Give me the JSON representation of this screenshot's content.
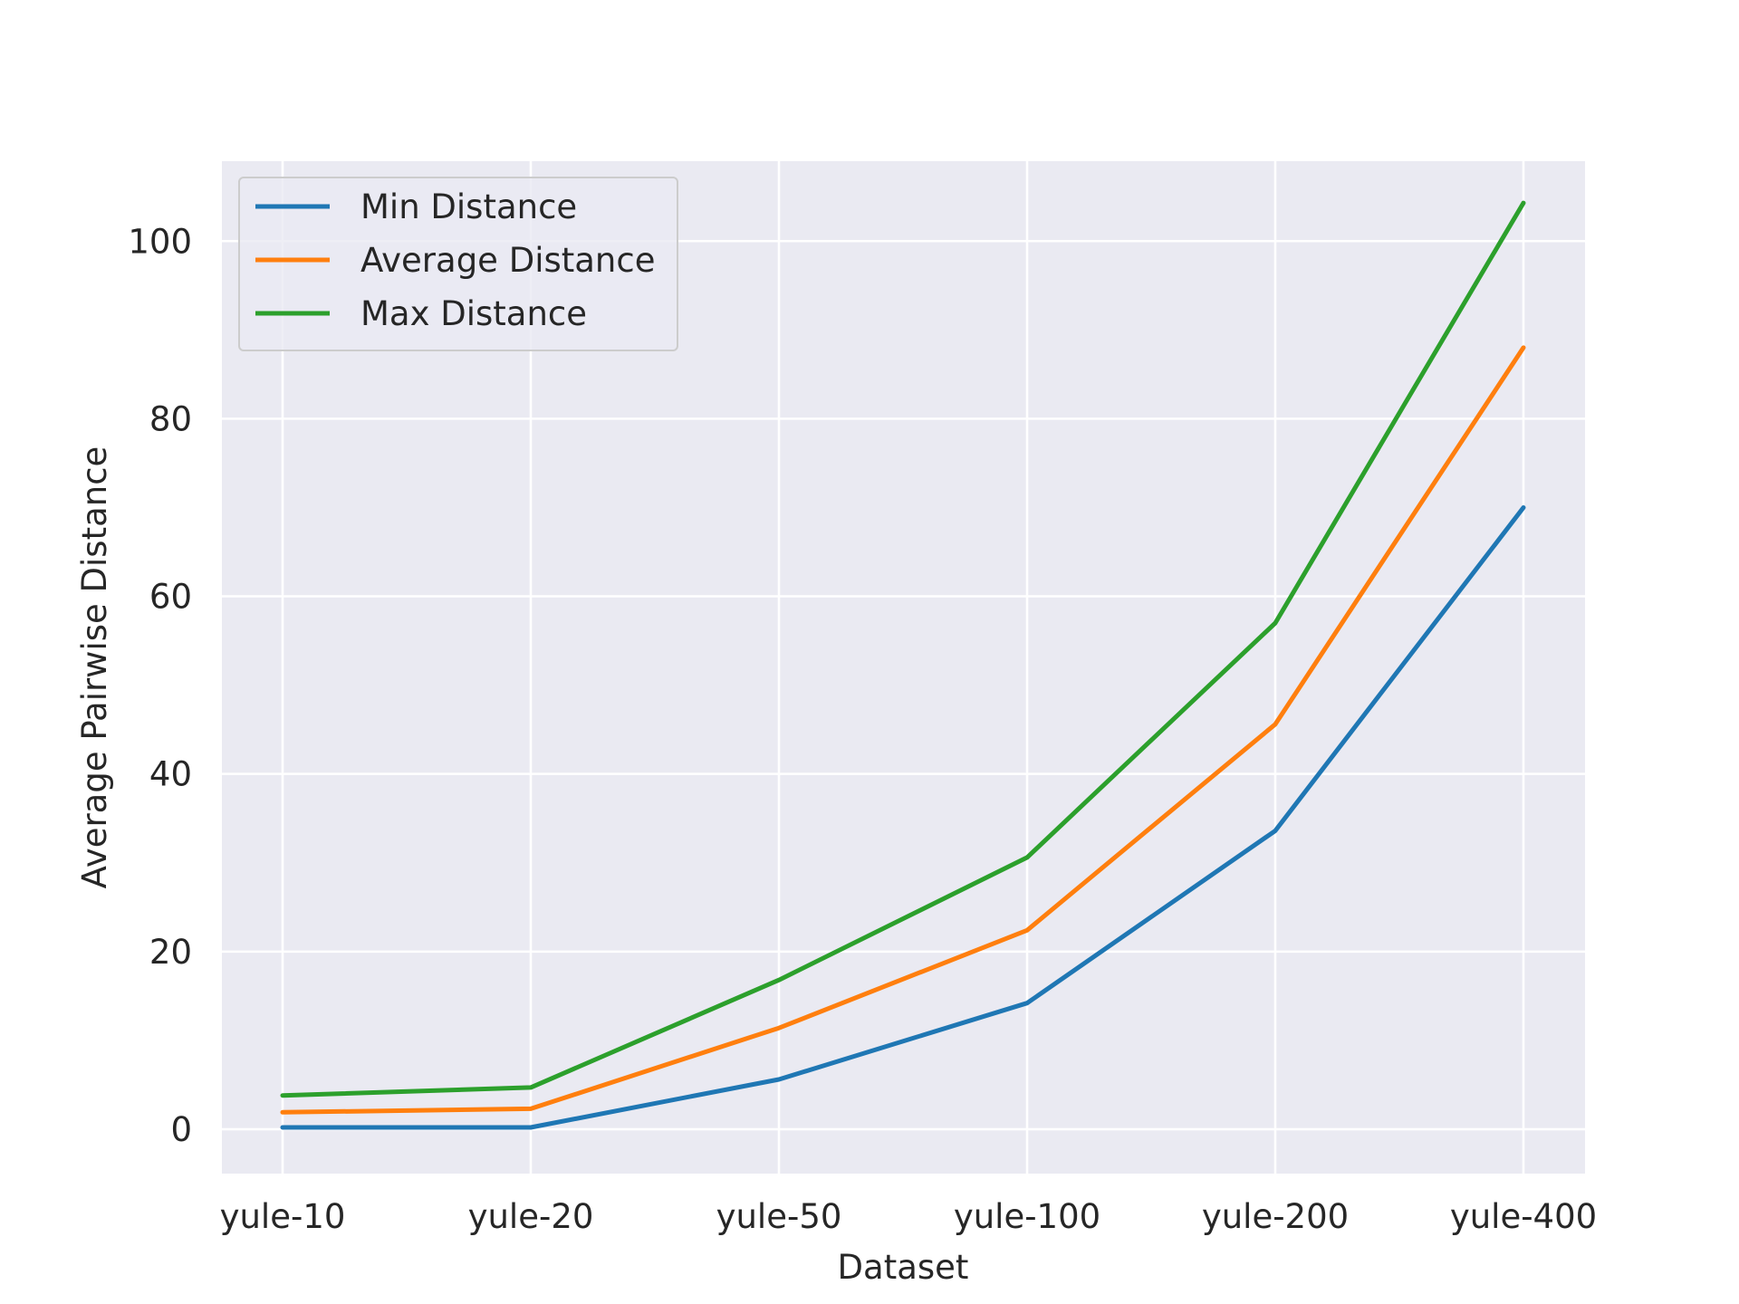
{
  "chart_data": {
    "type": "line",
    "categories": [
      "yule-10",
      "yule-20",
      "yule-50",
      "yule-100",
      "yule-200",
      "yule-400"
    ],
    "series": [
      {
        "name": "Min Distance",
        "color": "#1f77b4",
        "values": [
          0.2,
          0.2,
          5.6,
          14.2,
          33.6,
          70.0
        ]
      },
      {
        "name": "Average Distance",
        "color": "#ff7f0e",
        "values": [
          1.9,
          2.3,
          11.4,
          22.4,
          45.6,
          88.0
        ]
      },
      {
        "name": "Max Distance",
        "color": "#2ca02c",
        "values": [
          3.8,
          4.7,
          16.8,
          30.6,
          57.0,
          104.3
        ]
      }
    ],
    "title": "",
    "xlabel": "Dataset",
    "ylabel": "Average Pairwise Distance",
    "ylim": [
      -5,
      109
    ],
    "yticks": [
      0,
      20,
      40,
      60,
      80,
      100
    ],
    "grid": true,
    "legend_position": "top-left",
    "background": "#eaeaf2",
    "grid_color": "#ffffff"
  }
}
